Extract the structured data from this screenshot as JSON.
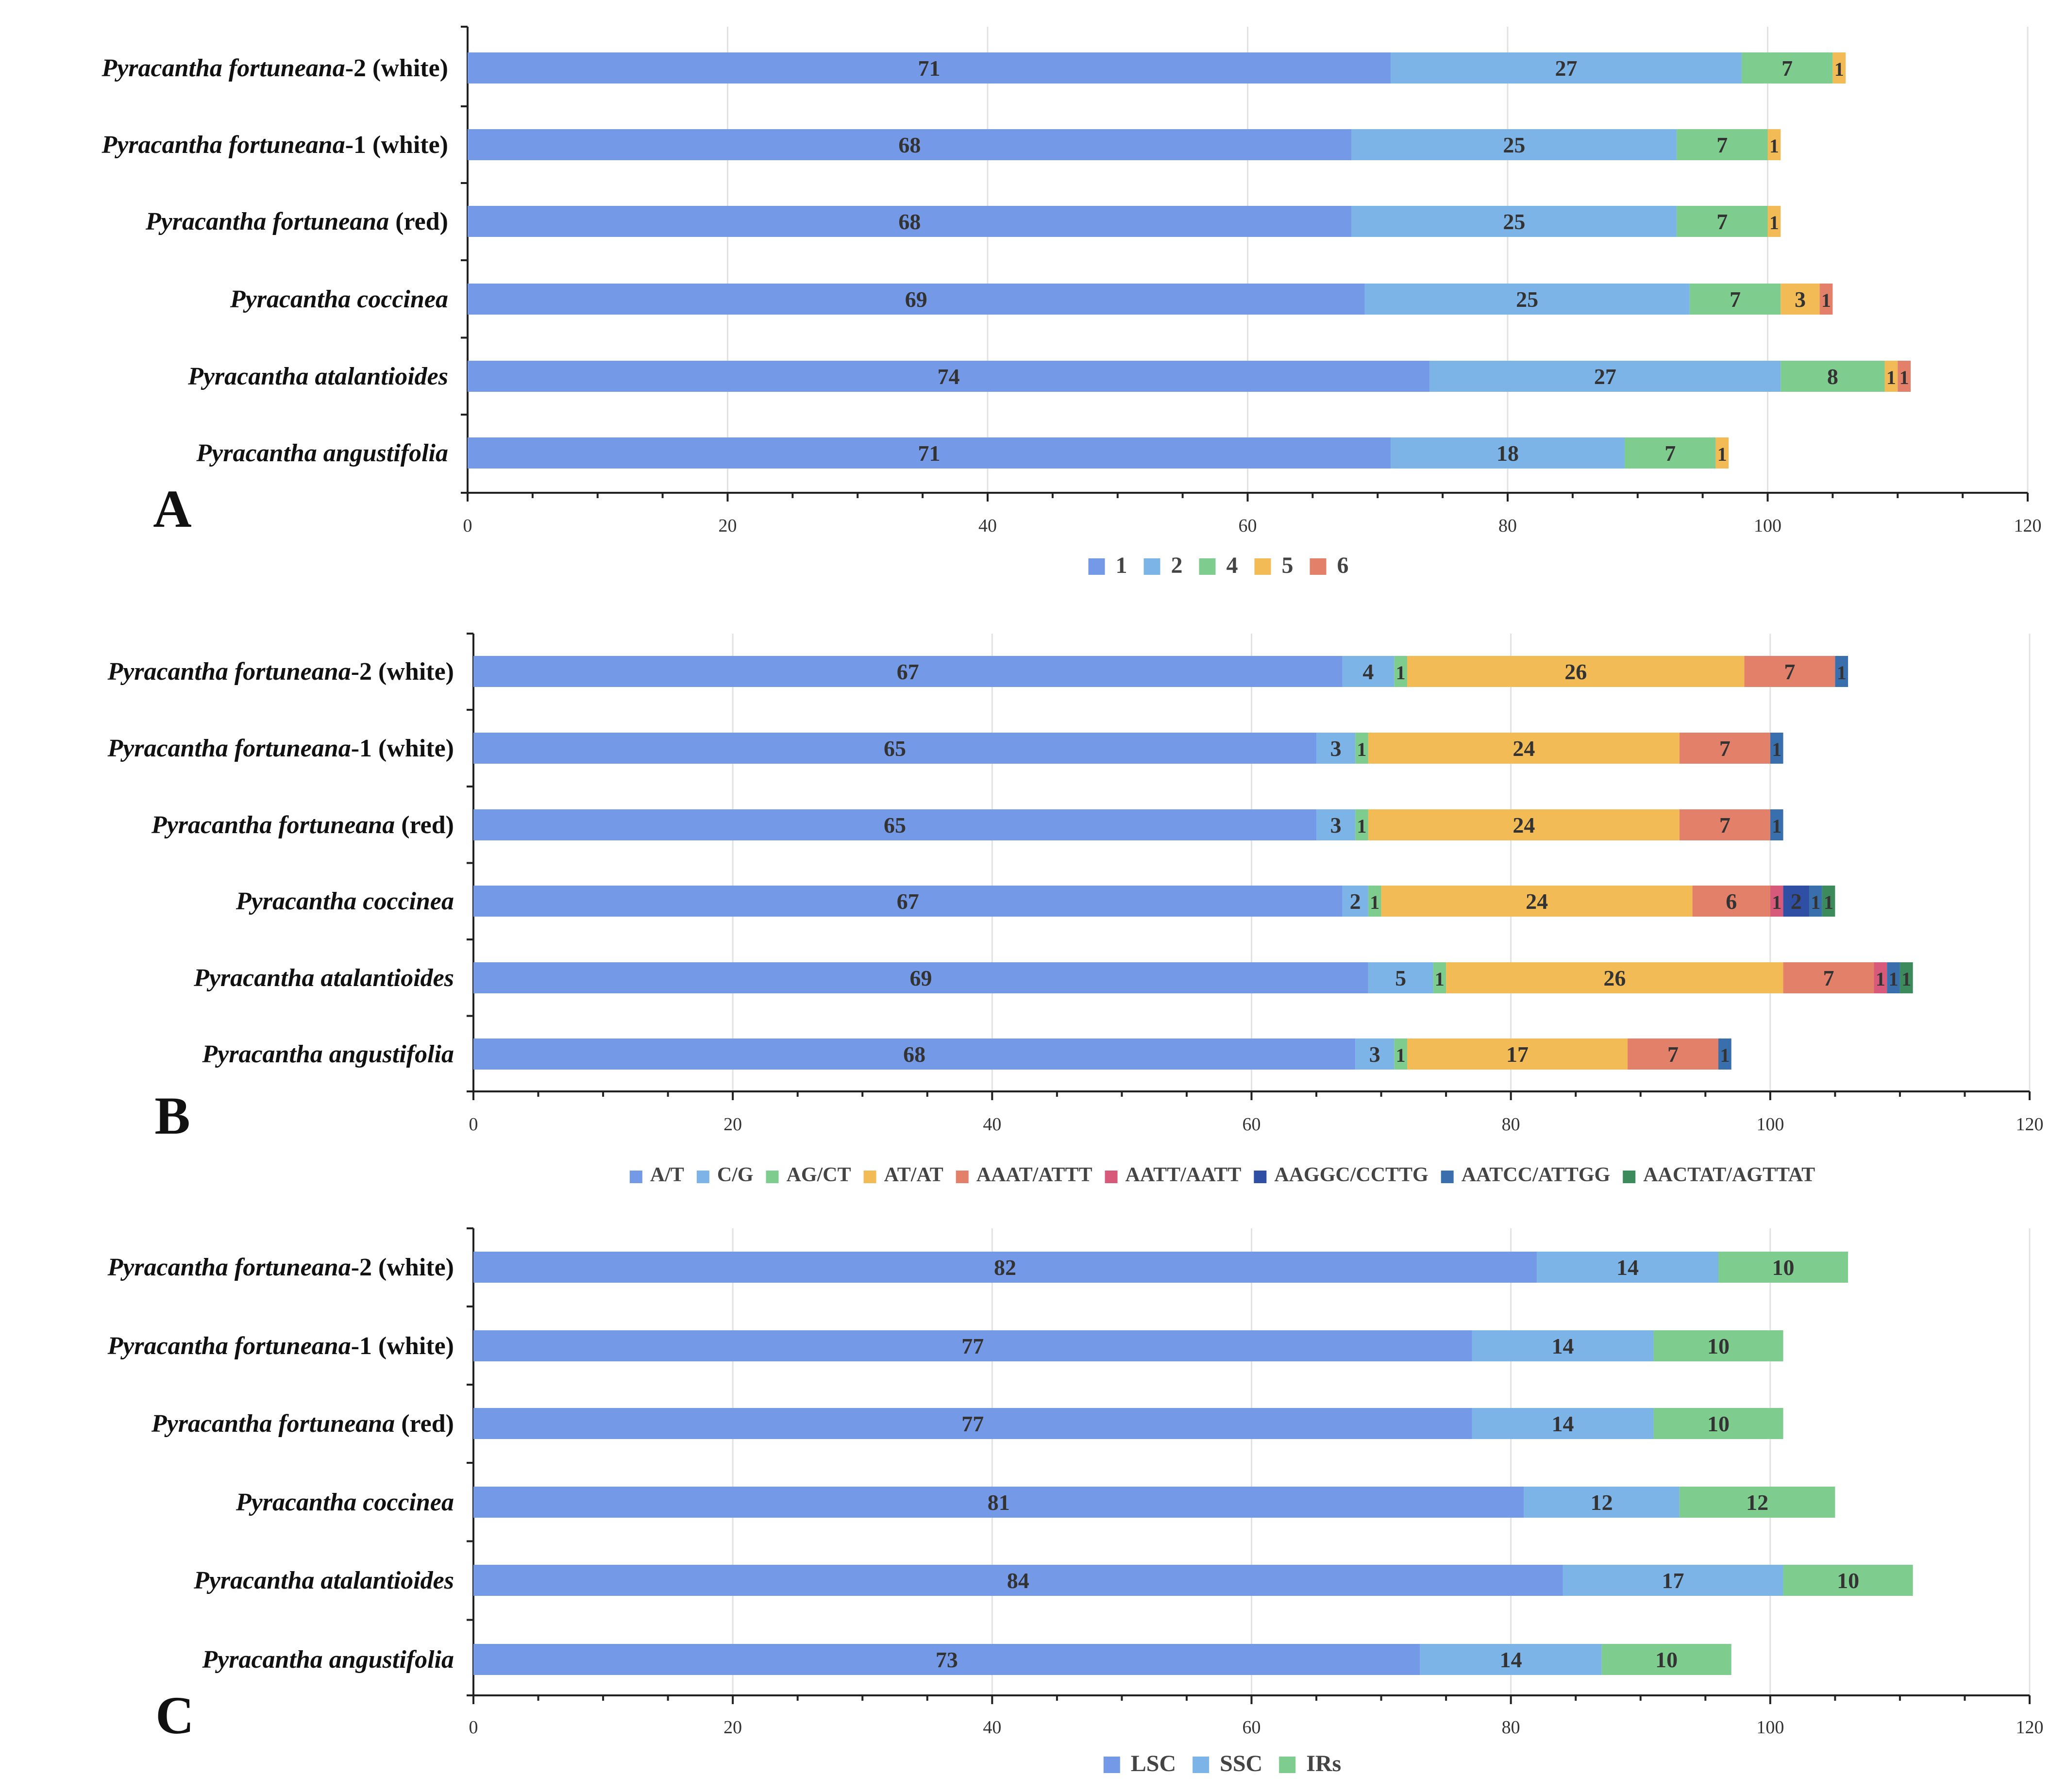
{
  "chart_data": [
    {
      "panel": "A",
      "type": "bar",
      "orientation": "horizontal",
      "stacked": true,
      "categories": [
        {
          "name": "Pyracantha fortuneana",
          "suffix": "-2 (white)"
        },
        {
          "name": "Pyracantha fortuneana",
          "suffix": "-1 (white)"
        },
        {
          "name": "Pyracantha fortuneana",
          "suffix": " (red)"
        },
        {
          "name": "Pyracantha coccinea",
          "suffix": ""
        },
        {
          "name": "Pyracantha atalantioides",
          "suffix": ""
        },
        {
          "name": "Pyracantha angustifolia",
          "suffix": ""
        }
      ],
      "series": [
        {
          "name": "1",
          "color": "#7499e6",
          "values": [
            71,
            68,
            68,
            69,
            74,
            71
          ]
        },
        {
          "name": "2",
          "color": "#7db4e8",
          "values": [
            27,
            25,
            25,
            25,
            27,
            18
          ]
        },
        {
          "name": "4",
          "color": "#7fcc8f",
          "values": [
            7,
            7,
            7,
            7,
            8,
            7
          ]
        },
        {
          "name": "5",
          "color": "#f2bb55",
          "values": [
            1,
            1,
            1,
            3,
            1,
            1
          ]
        },
        {
          "name": "6",
          "color": "#e2806a",
          "values": [
            0,
            0,
            0,
            1,
            1,
            0
          ]
        }
      ],
      "xlim": [
        0,
        120
      ],
      "xticks": [
        0,
        20,
        40,
        60,
        80,
        100,
        120
      ],
      "legend_position": "bottom"
    },
    {
      "panel": "B",
      "type": "bar",
      "orientation": "horizontal",
      "stacked": true,
      "categories": [
        {
          "name": "Pyracantha fortuneana",
          "suffix": "-2 (white)"
        },
        {
          "name": "Pyracantha fortuneana",
          "suffix": "-1 (white)"
        },
        {
          "name": "Pyracantha fortuneana",
          "suffix": " (red)"
        },
        {
          "name": "Pyracantha coccinea",
          "suffix": ""
        },
        {
          "name": "Pyracantha atalantioides",
          "suffix": ""
        },
        {
          "name": "Pyracantha angustifolia",
          "suffix": ""
        }
      ],
      "series": [
        {
          "name": "A/T",
          "color": "#7499e6",
          "values": [
            67,
            65,
            65,
            67,
            69,
            68
          ]
        },
        {
          "name": "C/G",
          "color": "#7db4e8",
          "values": [
            4,
            3,
            3,
            2,
            5,
            3
          ]
        },
        {
          "name": "AG/CT",
          "color": "#7fcc8f",
          "values": [
            1,
            1,
            1,
            1,
            1,
            1
          ]
        },
        {
          "name": "AT/AT",
          "color": "#f2bb55",
          "values": [
            26,
            24,
            24,
            24,
            26,
            17
          ]
        },
        {
          "name": "AAAT/ATTT",
          "color": "#e2806a",
          "values": [
            7,
            7,
            7,
            6,
            7,
            7
          ]
        },
        {
          "name": "AATT/AATT",
          "color": "#d85a7a",
          "values": [
            0,
            0,
            0,
            1,
            1,
            0
          ]
        },
        {
          "name": "AAGGC/CCTTG",
          "color": "#2e4fa3",
          "values": [
            0,
            0,
            0,
            2,
            0,
            0
          ]
        },
        {
          "name": "AATCC/ATTGG",
          "color": "#3a6fae",
          "values": [
            1,
            1,
            1,
            1,
            1,
            1
          ]
        },
        {
          "name": "AACTAT/AGTTAT",
          "color": "#3d8a5c",
          "values": [
            0,
            0,
            0,
            1,
            1,
            0
          ]
        }
      ],
      "xlim": [
        0,
        120
      ],
      "xticks": [
        0,
        20,
        40,
        60,
        80,
        100,
        120
      ],
      "legend_position": "bottom"
    },
    {
      "panel": "C",
      "type": "bar",
      "orientation": "horizontal",
      "stacked": true,
      "categories": [
        {
          "name": "Pyracantha fortuneana",
          "suffix": "-2 (white)"
        },
        {
          "name": "Pyracantha fortuneana",
          "suffix": "-1 (white)"
        },
        {
          "name": "Pyracantha fortuneana",
          "suffix": " (red)"
        },
        {
          "name": "Pyracantha coccinea",
          "suffix": ""
        },
        {
          "name": "Pyracantha atalantioides",
          "suffix": ""
        },
        {
          "name": "Pyracantha angustifolia",
          "suffix": ""
        }
      ],
      "series": [
        {
          "name": "LSC",
          "color": "#7499e6",
          "values": [
            82,
            77,
            77,
            81,
            84,
            73
          ]
        },
        {
          "name": "SSC",
          "color": "#7db4e8",
          "values": [
            14,
            14,
            14,
            12,
            17,
            14
          ]
        },
        {
          "name": "IRs",
          "color": "#7fcc8f",
          "values": [
            10,
            10,
            10,
            12,
            10,
            10
          ]
        }
      ],
      "xlim": [
        0,
        120
      ],
      "xticks": [
        0,
        20,
        40,
        60,
        80,
        100,
        120
      ],
      "legend_position": "bottom"
    }
  ]
}
